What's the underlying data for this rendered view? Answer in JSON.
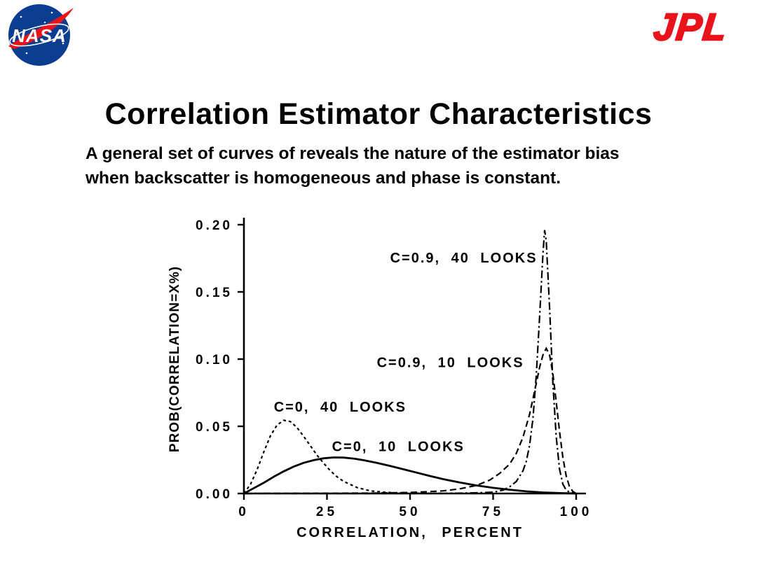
{
  "slide": {
    "title": "Correlation Estimator Characteristics",
    "body_lines": [
      "A general set of curves of reveals the nature of the estimator bias",
      "when backscatter is homogeneous and phase is constant."
    ]
  },
  "logos": {
    "nasa_text": "NASA",
    "jpl_text": "JPL",
    "nasa_blue": "#0B3D91",
    "logo_red": "#E8131B"
  },
  "chart_data": {
    "type": "line",
    "title": "",
    "xlabel": "CORRELATION, PERCENT",
    "ylabel": "PROB(CORRELATION=X%)",
    "xlim": [
      0,
      100
    ],
    "ylim": [
      0,
      0.2
    ],
    "grid": false,
    "legend_position": "inline-annotations",
    "xticks": [
      0,
      25,
      50,
      75,
      100
    ],
    "xtick_labels": [
      "0",
      "25",
      "50",
      "75",
      "100"
    ],
    "yticks": [
      0,
      0.05,
      0.1,
      0.15,
      0.2
    ],
    "ytick_labels": [
      "0.00",
      "0.05",
      "0.10",
      "0.15",
      "0.20"
    ],
    "series": [
      {
        "name": "C=0, 40 LOOKS",
        "style": "dotted",
        "points": [
          [
            0,
            0
          ],
          [
            2,
            0.007
          ],
          [
            4,
            0.018
          ],
          [
            6,
            0.031
          ],
          [
            8,
            0.043
          ],
          [
            10,
            0.051
          ],
          [
            12,
            0.0545
          ],
          [
            14,
            0.0535
          ],
          [
            16,
            0.049
          ],
          [
            18,
            0.0425
          ],
          [
            20,
            0.0355
          ],
          [
            22,
            0.0285
          ],
          [
            24,
            0.0225
          ],
          [
            26,
            0.017
          ],
          [
            28,
            0.0125
          ],
          [
            30,
            0.009
          ],
          [
            34,
            0.0045
          ],
          [
            38,
            0.002
          ],
          [
            42,
            0.001
          ],
          [
            46,
            0.0004
          ],
          [
            50,
            0.0002
          ],
          [
            60,
            0.0001
          ],
          [
            70,
            0
          ]
        ]
      },
      {
        "name": "C=0, 10 LOOKS",
        "style": "solid",
        "points": [
          [
            0,
            0
          ],
          [
            3,
            0.004
          ],
          [
            6,
            0.008
          ],
          [
            9,
            0.0125
          ],
          [
            12,
            0.0165
          ],
          [
            15,
            0.02
          ],
          [
            18,
            0.0228
          ],
          [
            21,
            0.0248
          ],
          [
            24,
            0.0262
          ],
          [
            27,
            0.0268
          ],
          [
            30,
            0.0267
          ],
          [
            33,
            0.026
          ],
          [
            36,
            0.0248
          ],
          [
            40,
            0.0228
          ],
          [
            44,
            0.0205
          ],
          [
            48,
            0.018
          ],
          [
            52,
            0.0155
          ],
          [
            56,
            0.013
          ],
          [
            60,
            0.0107
          ],
          [
            65,
            0.0082
          ],
          [
            70,
            0.006
          ],
          [
            75,
            0.0042
          ],
          [
            80,
            0.0028
          ],
          [
            85,
            0.0016
          ],
          [
            90,
            0.0008
          ],
          [
            95,
            0.0003
          ],
          [
            100,
            0
          ]
        ]
      },
      {
        "name": "C=0.9, 10 LOOKS",
        "style": "dashed",
        "points": [
          [
            0,
            0
          ],
          [
            40,
            0.0003
          ],
          [
            50,
            0.0008
          ],
          [
            55,
            0.0013
          ],
          [
            60,
            0.002
          ],
          [
            65,
            0.0035
          ],
          [
            70,
            0.006
          ],
          [
            74,
            0.01
          ],
          [
            77,
            0.015
          ],
          [
            80,
            0.022
          ],
          [
            82,
            0.03
          ],
          [
            84,
            0.042
          ],
          [
            86,
            0.059
          ],
          [
            88,
            0.082
          ],
          [
            89,
            0.094
          ],
          [
            90,
            0.103
          ],
          [
            91,
            0.108
          ],
          [
            92,
            0.103
          ],
          [
            93,
            0.089
          ],
          [
            94,
            0.068
          ],
          [
            95,
            0.046
          ],
          [
            96,
            0.027
          ],
          [
            97,
            0.013
          ],
          [
            98,
            0.005
          ],
          [
            99,
            0.0015
          ],
          [
            100,
            0
          ]
        ]
      },
      {
        "name": "C=0.9, 40 LOOKS",
        "style": "dashdot",
        "points": [
          [
            0,
            0
          ],
          [
            60,
            0
          ],
          [
            70,
            0.0005
          ],
          [
            75,
            0.001
          ],
          [
            78,
            0.0025
          ],
          [
            80,
            0.005
          ],
          [
            82,
            0.009
          ],
          [
            84,
            0.017
          ],
          [
            85,
            0.024
          ],
          [
            86,
            0.036
          ],
          [
            87,
            0.056
          ],
          [
            88,
            0.088
          ],
          [
            89,
            0.132
          ],
          [
            90,
            0.178
          ],
          [
            90.5,
            0.196
          ],
          [
            91,
            0.188
          ],
          [
            92,
            0.138
          ],
          [
            93,
            0.082
          ],
          [
            94,
            0.042
          ],
          [
            95,
            0.018
          ],
          [
            96,
            0.007
          ],
          [
            97,
            0.0025
          ],
          [
            98,
            0.001
          ],
          [
            100,
            0
          ]
        ]
      }
    ],
    "annotations": [
      {
        "text": "C=0.9, 40 LOOKS",
        "x": 44,
        "y": 0.172
      },
      {
        "text": "C=0.9, 10 LOOKS",
        "x": 40,
        "y": 0.094
      },
      {
        "text": "C=0, 40 LOOKS",
        "x": 9,
        "y": 0.061
      },
      {
        "text": "C=0, 10 LOOKS",
        "x": 26.5,
        "y": 0.0315
      }
    ]
  }
}
